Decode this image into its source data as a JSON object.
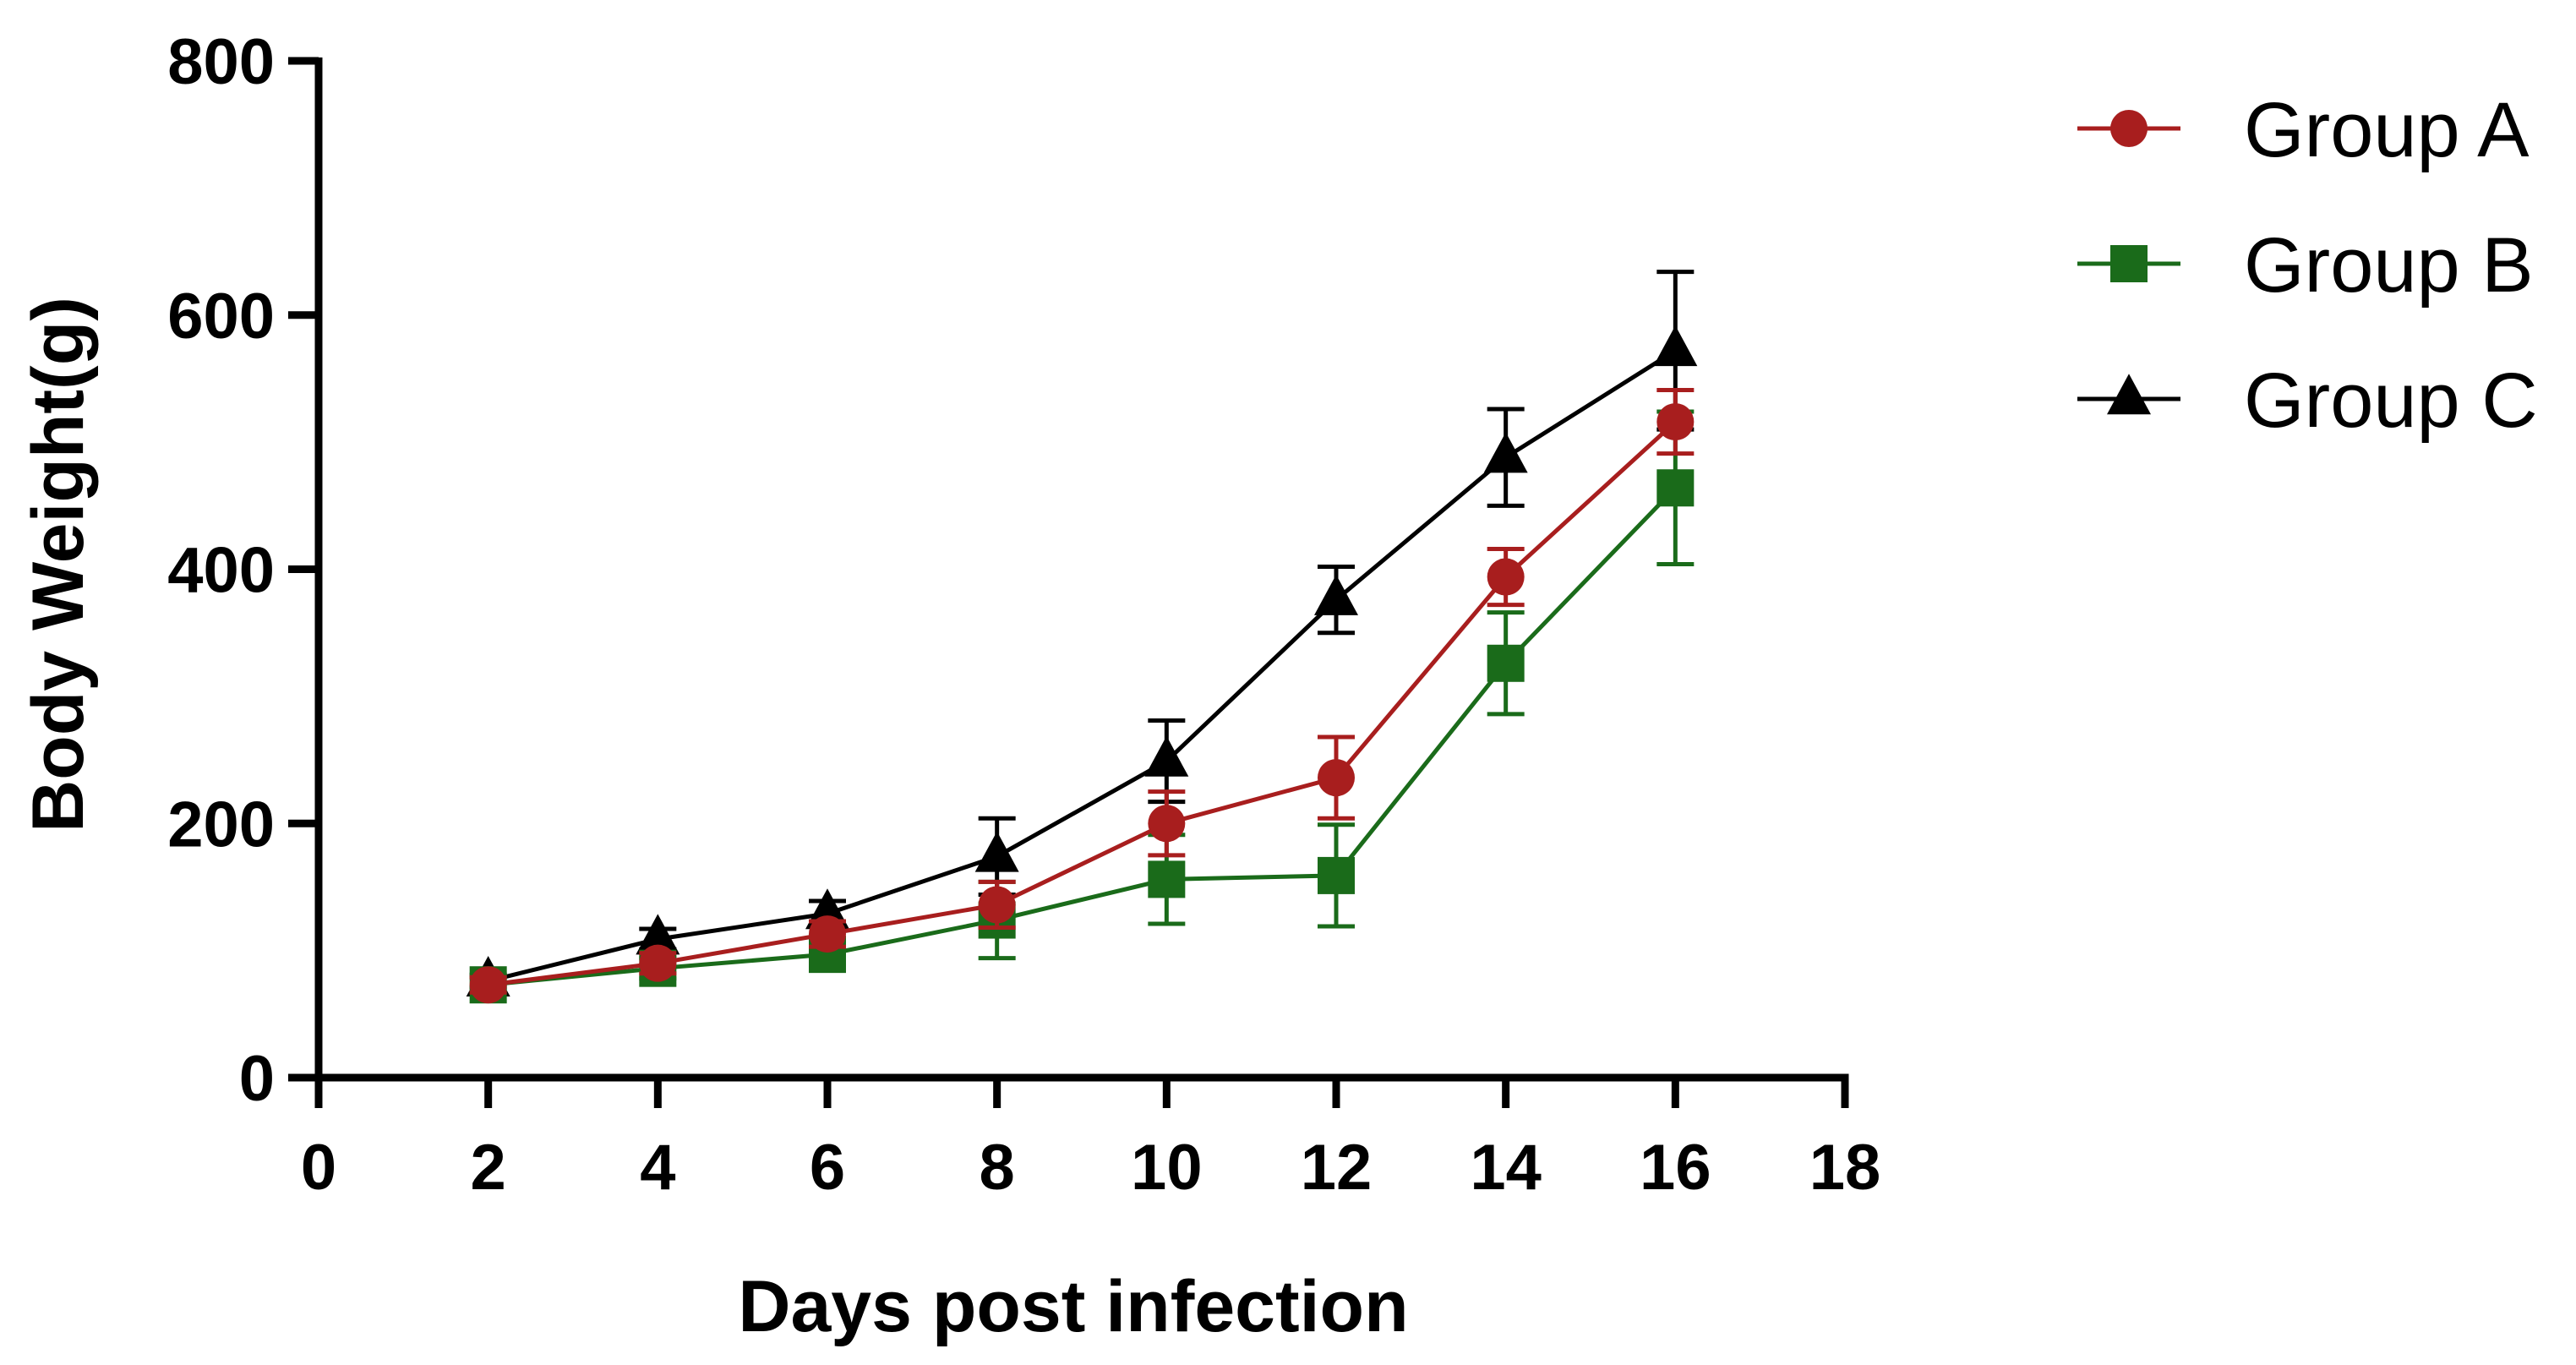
{
  "chart_data": {
    "type": "line",
    "xlabel": "Days post infection",
    "ylabel": "Body Weight(g)",
    "xlim": [
      0,
      18
    ],
    "ylim": [
      0,
      800
    ],
    "xticks": [
      "0",
      "2",
      "4",
      "6",
      "8",
      "10",
      "12",
      "14",
      "16",
      "18"
    ],
    "yticks": [
      "0",
      "200",
      "400",
      "600",
      "800"
    ],
    "x": [
      2,
      4,
      6,
      8,
      10,
      12,
      14,
      16
    ],
    "legend_position": "top-right",
    "grid": false,
    "series": [
      {
        "name": "Group A",
        "color": "#a81e1e",
        "marker": "circle",
        "values": [
          73,
          90,
          113,
          136,
          200,
          236,
          394,
          516
        ],
        "error": [
          6,
          8,
          10,
          18,
          25,
          32,
          22,
          25
        ]
      },
      {
        "name": "Group B",
        "color": "#1a6b1a",
        "marker": "square",
        "values": [
          73,
          86,
          97,
          124,
          156,
          159,
          326,
          464
        ],
        "error": [
          6,
          8,
          10,
          30,
          35,
          40,
          40,
          60
        ]
      },
      {
        "name": "Group C",
        "color": "#000000",
        "marker": "triangle",
        "values": [
          76,
          109,
          129,
          174,
          249,
          376,
          488,
          572
        ],
        "error": [
          5,
          8,
          10,
          30,
          32,
          26,
          38,
          62
        ]
      }
    ]
  }
}
